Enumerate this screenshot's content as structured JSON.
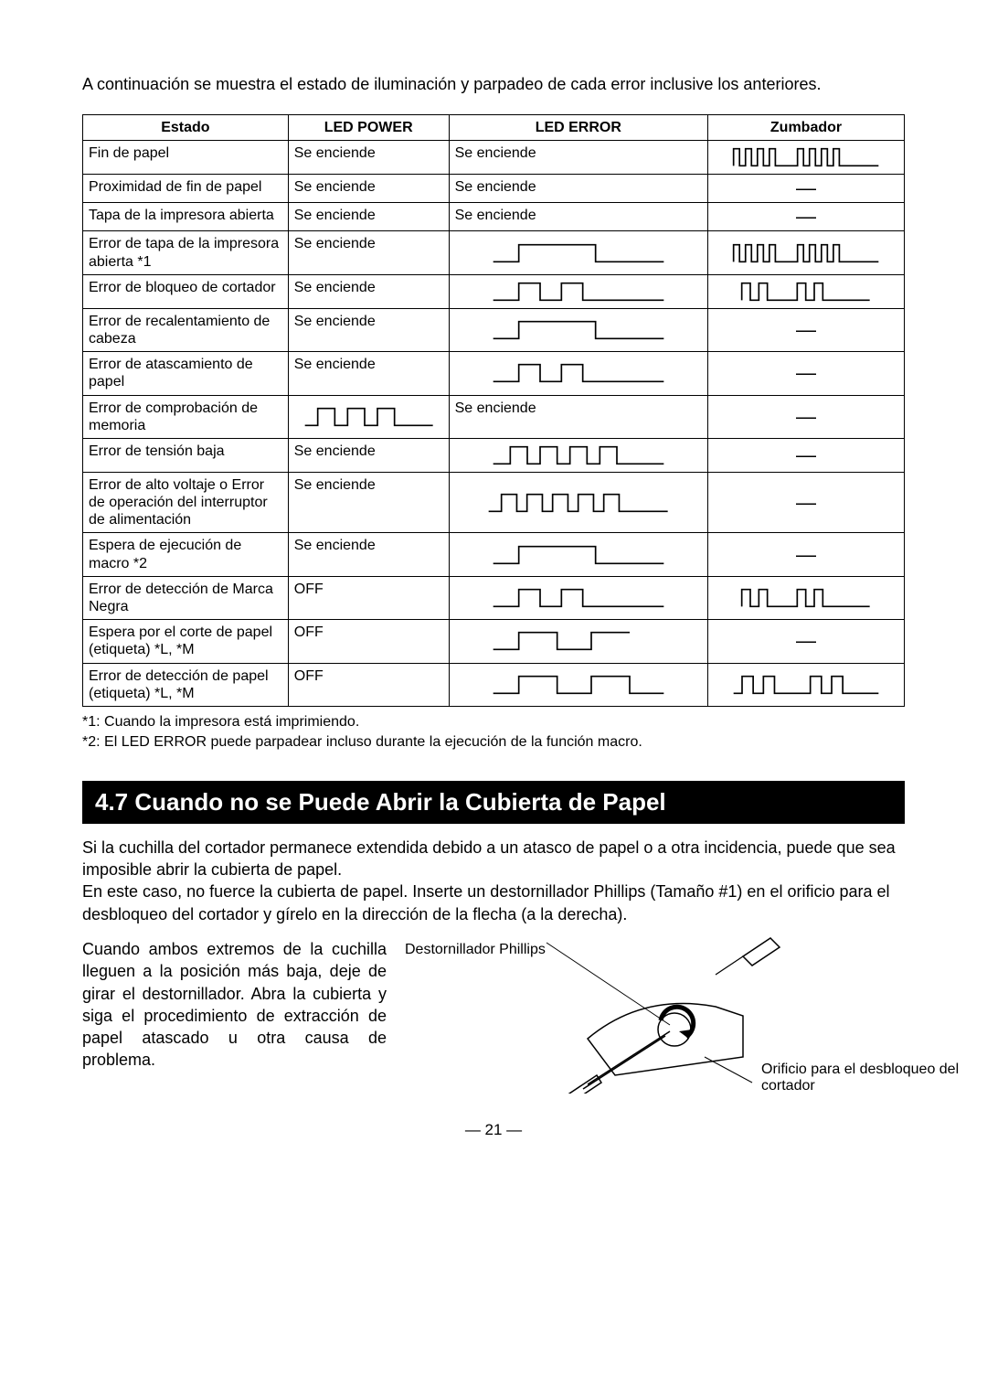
{
  "intro": "A continuación se muestra el estado de iluminación y parpadeo de cada error inclusive los anteriores.",
  "table": {
    "headers": [
      "Estado",
      "LED POWER",
      "LED ERROR",
      "Zumbador"
    ],
    "rows": [
      {
        "estado": "Fin de papel",
        "power": "Se enciende",
        "error_text": "Se enciende",
        "error_sig": null,
        "buzz_sig": "beep4x2",
        "buzz_text": null
      },
      {
        "estado": "Proximidad de fin de papel",
        "power": "Se enciende",
        "error_text": "Se enciende",
        "error_sig": null,
        "buzz_sig": null,
        "buzz_text": "—"
      },
      {
        "estado": "Tapa de la impresora abierta",
        "power": "Se enciende",
        "error_text": "Se enciende",
        "error_sig": null,
        "buzz_sig": null,
        "buzz_text": "—"
      },
      {
        "estado": "Error de tapa de la impresora abierta *1",
        "power": "Se enciende",
        "error_text": null,
        "error_sig": "long1",
        "buzz_sig": "beep4x2",
        "buzz_text": null
      },
      {
        "estado": "Error de bloqueo de cortador",
        "power": "Se enciende",
        "error_text": null,
        "error_sig": "pulse2",
        "buzz_sig": "beep2sp",
        "buzz_text": null
      },
      {
        "estado": "Error de recalentamiento de cabeza",
        "power": "Se enciende",
        "error_text": null,
        "error_sig": "long1",
        "buzz_sig": null,
        "buzz_text": "—"
      },
      {
        "estado": "Error de atascamiento de papel",
        "power": "Se enciende",
        "error_text": null,
        "error_sig": "pulse2",
        "buzz_sig": null,
        "buzz_text": "—"
      },
      {
        "estado": "Error de comprobación de memoria",
        "power_sig": "pulse3",
        "power": null,
        "error_text": "Se enciende",
        "error_sig": null,
        "buzz_sig": null,
        "buzz_text": "—"
      },
      {
        "estado": "Error de tensión baja",
        "power": "Se enciende",
        "error_text": null,
        "error_sig": "pulse4",
        "buzz_sig": null,
        "buzz_text": "—"
      },
      {
        "estado": "Error de alto voltaje o Error de operación del interruptor de alimentación",
        "power": "Se enciende",
        "error_text": null,
        "error_sig": "pulse5",
        "buzz_sig": null,
        "buzz_text": "—"
      },
      {
        "estado": "Espera de ejecución de macro *2",
        "power": "Se enciende",
        "error_text": null,
        "error_sig": "long1",
        "buzz_sig": null,
        "buzz_text": "—"
      },
      {
        "estado": "Error de detección de Marca Negra",
        "power": "OFF",
        "error_text": null,
        "error_sig": "pulse2",
        "buzz_sig": "beep2sp",
        "buzz_text": null
      },
      {
        "estado": "Espera por el corte de papel (etiqueta) *L, *M",
        "power": "OFF",
        "error_text": null,
        "error_sig": "step2",
        "buzz_sig": null,
        "buzz_text": "—"
      },
      {
        "estado": "Error de detección de papel (etiqueta) *L, *M",
        "power": "OFF",
        "error_text": null,
        "error_sig": "step2b",
        "buzz_sig": "beep2spb",
        "buzz_text": null
      }
    ]
  },
  "footnotes": [
    "*1: Cuando la impresora está imprimiendo.",
    "*2: El LED ERROR puede parpadear incluso durante la ejecución de la función macro."
  ],
  "section_title": "4.7  Cuando no se Puede Abrir la Cubierta de Papel",
  "section_body": "Si la cuchilla del cortador permanece extendida debido a un atasco de papel o a otra incidencia, puede que sea imposible abrir la cubierta de papel.\nEn este caso, no fuerce la cubierta de papel.  Inserte un destornillador Phillips (Tamaño #1) en el orificio para el desbloqueo del cortador y gírelo en la dirección de la flecha (a la derecha).",
  "section_left": "Cuando ambos extremos de la cuchilla lleguen a la posición más baja, deje de girar el destornillador. Abra la cubierta y siga el procedimiento de extracción de papel atascado u otra causa de problema.",
  "fig_labels": {
    "screwdriver": "Destornillador Phillips",
    "hole": "Orificio para el desbloqueo del cortador"
  },
  "page_number": "— 21 —",
  "signal_defs": {
    "stroke": "#000000",
    "stroke_width": 1.8
  }
}
